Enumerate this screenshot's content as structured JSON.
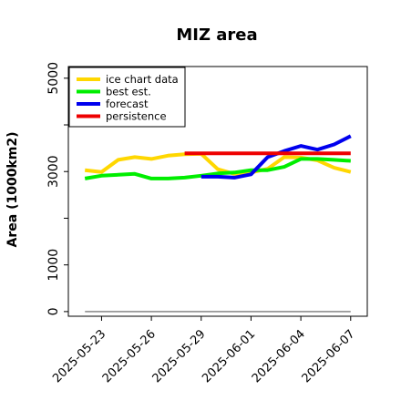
{
  "chart_data": {
    "type": "line",
    "title": "MIZ area",
    "xlabel": "",
    "ylabel": "Area (1000km2)",
    "xlim": [
      "2025-05-21",
      "2025-06-08"
    ],
    "ylim": [
      -100,
      5250
    ],
    "yticks": [
      0,
      1000,
      3000,
      5000
    ],
    "xticks": [
      "2025-05-23",
      "2025-05-26",
      "2025-05-29",
      "2025-06-01",
      "2025-06-04",
      "2025-06-07"
    ],
    "highlight_tick": "2025-05-29",
    "highlight_color": "#228B22",
    "legend_position": "upper-left",
    "grid": false,
    "series": [
      {
        "name": "ice chart data",
        "color": "#FFD700",
        "x": [
          "2025-05-22",
          "2025-05-23",
          "2025-05-24",
          "2025-05-25",
          "2025-05-26",
          "2025-05-27",
          "2025-05-28",
          "2025-05-29",
          "2025-05-30",
          "2025-05-31",
          "2025-06-01",
          "2025-06-02",
          "2025-06-03",
          "2025-06-04",
          "2025-06-05",
          "2025-06-06",
          "2025-06-07"
        ],
        "values": [
          3030,
          2990,
          3250,
          3310,
          3270,
          3340,
          3370,
          3380,
          3050,
          2950,
          2980,
          3060,
          3310,
          3300,
          3240,
          3080,
          2990
        ]
      },
      {
        "name": "best est.",
        "color": "#00EE00",
        "x": [
          "2025-05-22",
          "2025-05-23",
          "2025-05-24",
          "2025-05-25",
          "2025-05-26",
          "2025-05-27",
          "2025-05-28",
          "2025-05-29",
          "2025-05-30",
          "2025-05-31",
          "2025-06-01",
          "2025-06-02",
          "2025-06-03",
          "2025-06-04",
          "2025-06-05",
          "2025-06-06",
          "2025-06-07"
        ],
        "values": [
          2850,
          2910,
          2930,
          2950,
          2850,
          2850,
          2870,
          2910,
          2960,
          2980,
          3030,
          3030,
          3100,
          3270,
          3270,
          3250,
          3230
        ]
      },
      {
        "name": "forecast",
        "color": "#0000EE",
        "x": [
          "2025-05-29",
          "2025-05-30",
          "2025-05-31",
          "2025-06-01",
          "2025-06-02",
          "2025-06-03",
          "2025-06-04",
          "2025-06-05",
          "2025-06-06",
          "2025-06-07"
        ],
        "values": [
          2890,
          2890,
          2870,
          2940,
          3310,
          3440,
          3550,
          3470,
          3580,
          3760
        ]
      },
      {
        "name": "persistence",
        "color": "#EE0000",
        "x": [
          "2025-05-28",
          "2025-06-07"
        ],
        "values": [
          3390,
          3390
        ]
      }
    ],
    "baseline": {
      "value": 0,
      "color": "#888888",
      "x": [
        "2025-05-22",
        "2025-06-07"
      ]
    }
  }
}
